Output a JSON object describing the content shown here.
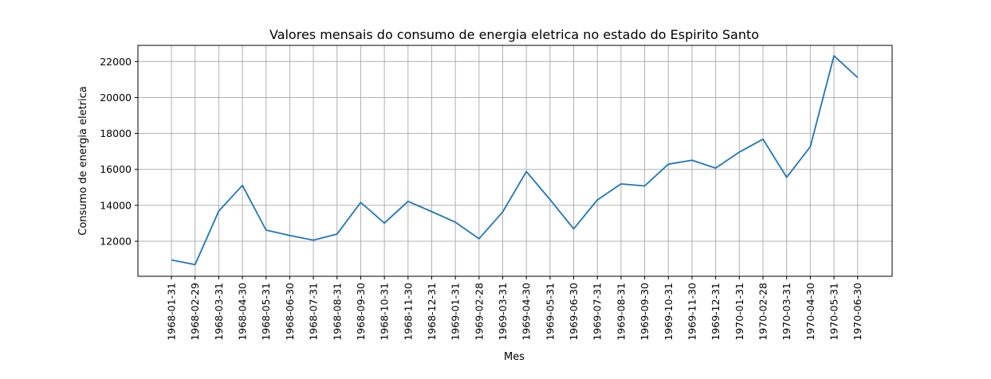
{
  "chart_data": {
    "type": "line",
    "title": "Valores mensais do consumo de energia eletrica no estado do Espirito Santo",
    "xlabel": "Mes",
    "ylabel": "Consumo de energia eletrica",
    "x": [
      "1968-01-31",
      "1968-02-29",
      "1968-03-31",
      "1968-04-30",
      "1968-05-31",
      "1968-06-30",
      "1968-07-31",
      "1968-08-31",
      "1968-09-30",
      "1968-10-31",
      "1968-11-30",
      "1968-12-31",
      "1969-01-31",
      "1969-02-28",
      "1969-03-31",
      "1969-04-30",
      "1969-05-31",
      "1969-06-30",
      "1969-07-31",
      "1969-08-31",
      "1969-09-30",
      "1969-10-31",
      "1969-11-30",
      "1969-12-31",
      "1970-01-31",
      "1970-02-28",
      "1970-03-31",
      "1970-04-30",
      "1970-05-31",
      "1970-06-30"
    ],
    "series": [
      {
        "values": [
          10960,
          10700,
          13680,
          15110,
          12620,
          12320,
          12060,
          12400,
          14160,
          13010,
          14220,
          13650,
          13060,
          12140,
          13630,
          15880,
          14320,
          12690,
          14300,
          15190,
          15080,
          16290,
          16510,
          16070,
          16960,
          17680,
          15560,
          17260,
          22320,
          21110
        ]
      }
    ],
    "ylim": [
      10050,
      22900
    ],
    "yticks": [
      12000,
      14000,
      16000,
      18000,
      20000,
      22000
    ],
    "grid": true,
    "line_color": "#1f77b4"
  }
}
